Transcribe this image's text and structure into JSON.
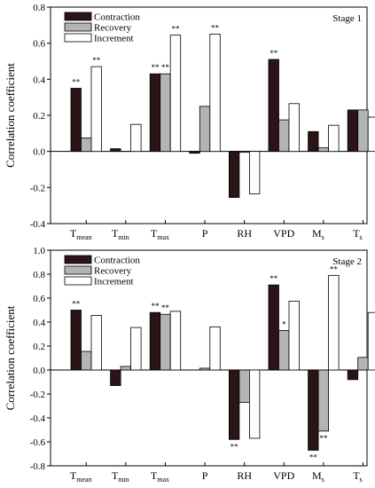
{
  "colors": {
    "Contraction": "#2a1416",
    "Recovery": "#b4b4b4",
    "Increment": "#ffffff"
  },
  "chart_data": [
    {
      "type": "bar",
      "stage_label": "Stage 1",
      "ylabel": "Correlation coefficient",
      "ylim": [
        -0.4,
        0.8
      ],
      "yticks": [
        "-0.4",
        "-0.2",
        "0.0",
        "0.2",
        "0.4",
        "0.6",
        "0.8"
      ],
      "grid": false,
      "legend_position": "top-left",
      "categories": [
        {
          "main": "T",
          "sub": "mean"
        },
        {
          "main": "T",
          "sub": "min"
        },
        {
          "main": "T",
          "sub": "max"
        },
        {
          "main": "P",
          "sub": ""
        },
        {
          "main": "RH",
          "sub": ""
        },
        {
          "main": "VPD",
          "sub": ""
        },
        {
          "main": "M",
          "sub": "s"
        },
        {
          "main": "T",
          "sub": "s"
        }
      ],
      "series": [
        {
          "name": "Contraction",
          "values": [
            0.35,
            0.015,
            0.43,
            -0.01,
            -0.255,
            0.51,
            0.11,
            0.23
          ],
          "sig": [
            "**",
            "",
            "**",
            "",
            "",
            "**",
            "",
            ""
          ]
        },
        {
          "name": "Recovery",
          "values": [
            0.075,
            0.0,
            0.43,
            0.25,
            -0.005,
            0.175,
            0.02,
            0.23
          ],
          "sig": [
            "",
            "",
            "**",
            "",
            "",
            "",
            "",
            ""
          ]
        },
        {
          "name": "Increment",
          "values": [
            0.47,
            0.15,
            0.645,
            0.65,
            -0.235,
            0.265,
            0.145,
            0.19
          ],
          "sig": [
            "**",
            "",
            "**",
            "**",
            "",
            "",
            "",
            ""
          ]
        }
      ]
    },
    {
      "type": "bar",
      "stage_label": "Stage 2",
      "ylabel": "Correlation coefficient",
      "ylim": [
        -0.8,
        1.0
      ],
      "yticks": [
        "-0.8",
        "-0.6",
        "-0.4",
        "-0.2",
        "0.0",
        "0.2",
        "0.4",
        "0.6",
        "0.8",
        "1.0"
      ],
      "grid": false,
      "legend_position": "top-left",
      "categories": [
        {
          "main": "T",
          "sub": "mean"
        },
        {
          "main": "T",
          "sub": "min"
        },
        {
          "main": "T",
          "sub": "max"
        },
        {
          "main": "P",
          "sub": ""
        },
        {
          "main": "RH",
          "sub": ""
        },
        {
          "main": "VPD",
          "sub": ""
        },
        {
          "main": "M",
          "sub": "s"
        },
        {
          "main": "T",
          "sub": "s"
        }
      ],
      "series": [
        {
          "name": "Contraction",
          "values": [
            0.5,
            -0.13,
            0.48,
            0.0,
            -0.58,
            0.71,
            -0.67,
            -0.08
          ],
          "sig": [
            "**",
            "",
            "**",
            "",
            "**",
            "**",
            "**",
            ""
          ]
        },
        {
          "name": "Recovery",
          "values": [
            0.155,
            0.03,
            0.465,
            0.015,
            -0.27,
            0.33,
            -0.51,
            0.105
          ],
          "sig": [
            "",
            "",
            "**",
            "",
            "",
            "*",
            "**",
            ""
          ]
        },
        {
          "name": "Increment",
          "values": [
            0.455,
            0.355,
            0.49,
            0.36,
            -0.57,
            0.575,
            0.79,
            0.48
          ],
          "sig": [
            "",
            "",
            "",
            "",
            "",
            "",
            "**",
            ""
          ]
        }
      ]
    }
  ]
}
